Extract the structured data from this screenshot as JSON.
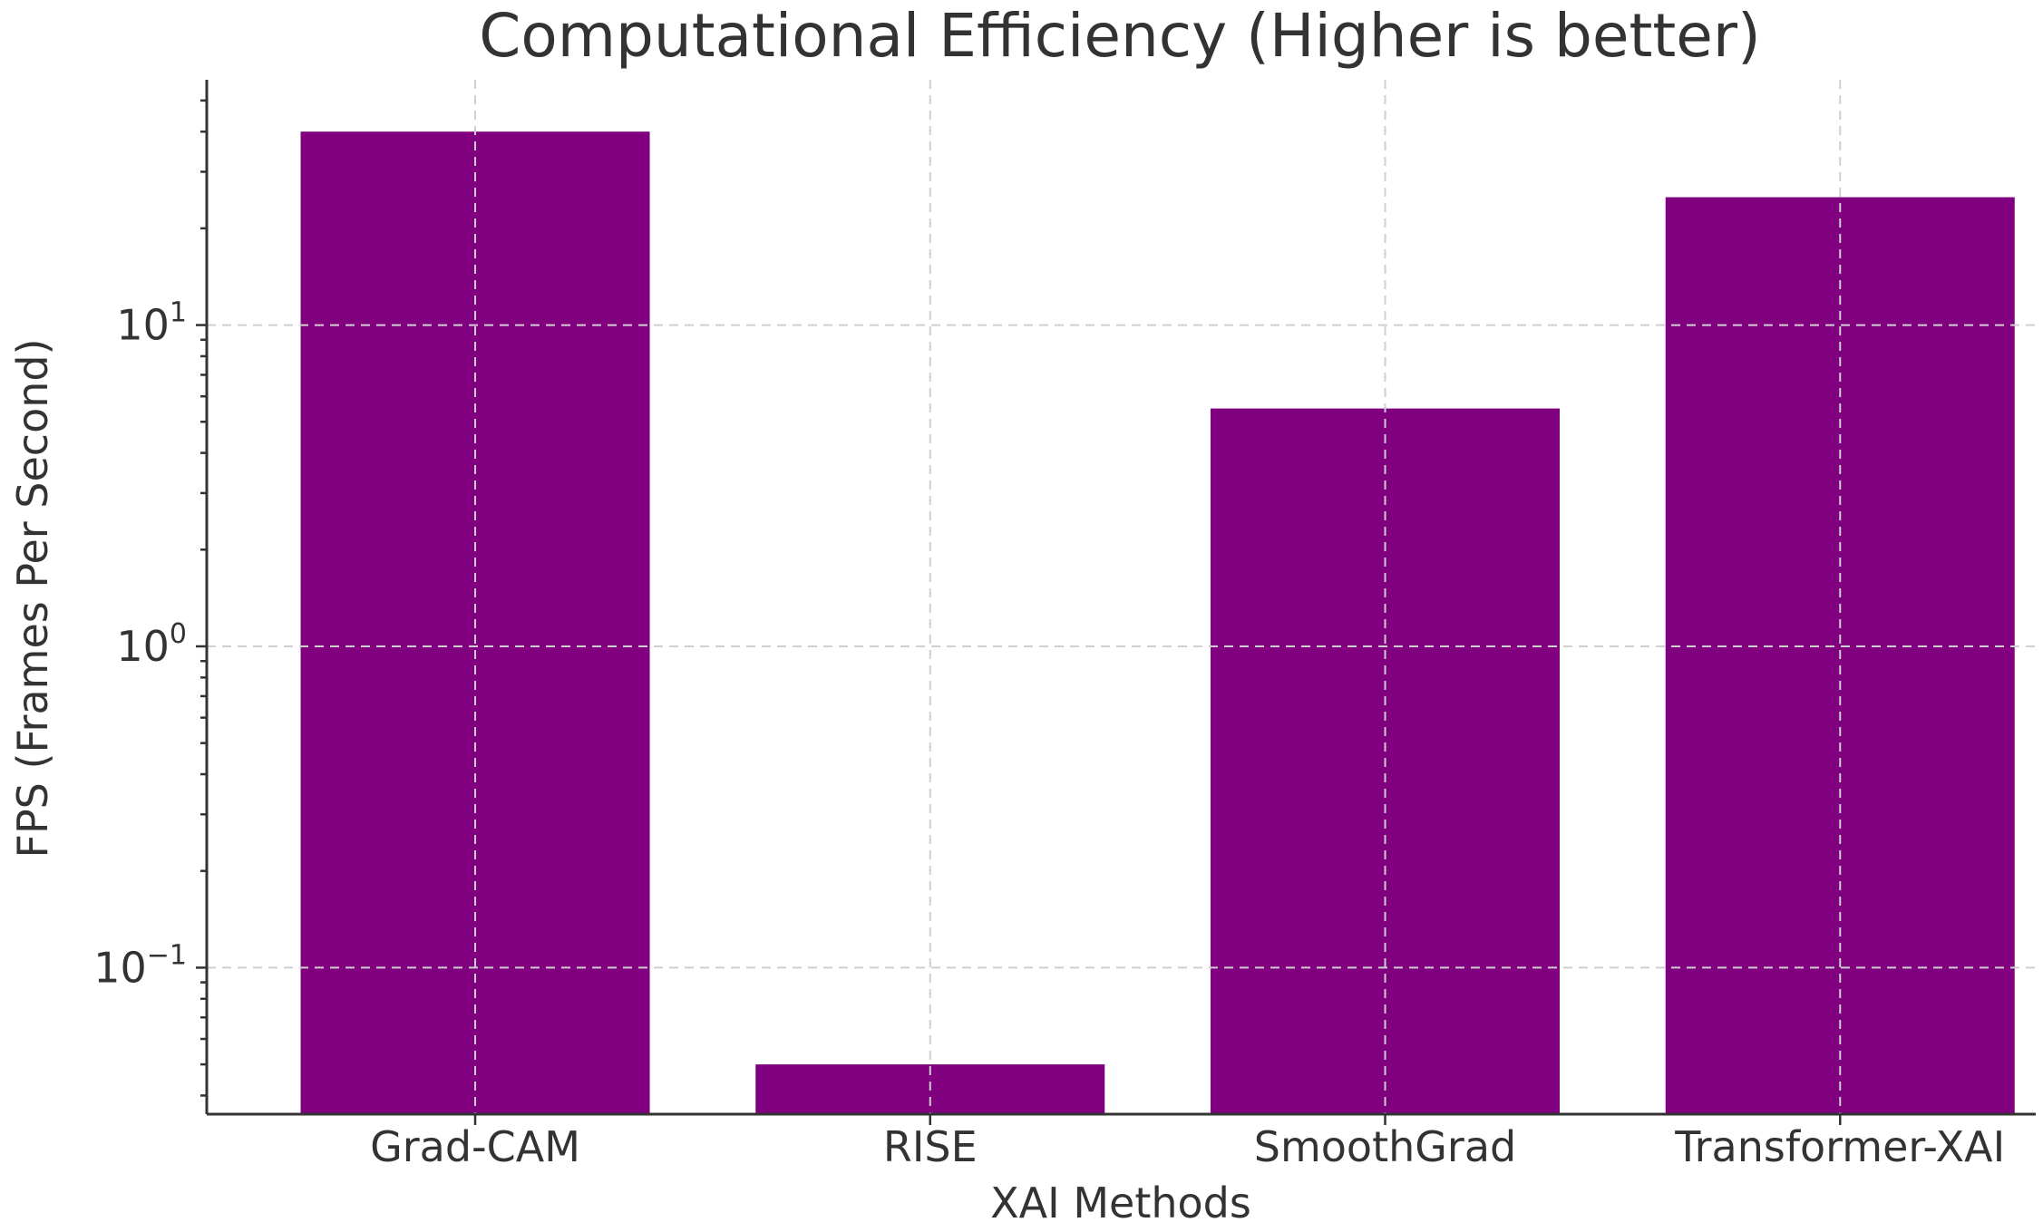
{
  "chart_data": {
    "type": "bar",
    "title": "Computational Efficiency (Higher is better)",
    "xlabel": "XAI Methods",
    "ylabel": "FPS (Frames Per Second)",
    "categories": [
      "Grad-CAM",
      "RISE",
      "SmoothGrad",
      "Transformer-XAI"
    ],
    "values": [
      40,
      0.05,
      5.5,
      25
    ],
    "yscale": "log",
    "ylim": [
      0.035,
      58
    ],
    "yticks": [
      {
        "value": 0.1,
        "base": "10",
        "exp": "−1"
      },
      {
        "value": 1,
        "base": "10",
        "exp": "0"
      },
      {
        "value": 10,
        "base": "10",
        "exp": "1"
      }
    ],
    "grid": true,
    "bar_color": "#800080"
  }
}
